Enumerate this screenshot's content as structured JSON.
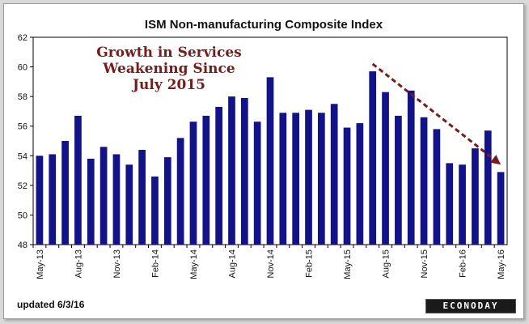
{
  "chart_data": {
    "type": "bar",
    "title": "ISM Non-manufacturing Composite Index",
    "annotation_lines": [
      "Growth in Services",
      "Weakening Since",
      "July 2015"
    ],
    "categories": [
      "May-13",
      "Jun-13",
      "Jul-13",
      "Aug-13",
      "Sep-13",
      "Oct-13",
      "Nov-13",
      "Dec-13",
      "Jan-14",
      "Feb-14",
      "Mar-14",
      "Apr-14",
      "May-14",
      "Jun-14",
      "Jul-14",
      "Aug-14",
      "Sep-14",
      "Oct-14",
      "Nov-14",
      "Dec-14",
      "Jan-15",
      "Feb-15",
      "Mar-15",
      "Apr-15",
      "May-15",
      "Jun-15",
      "Jul-15",
      "Aug-15",
      "Sep-15",
      "Oct-15",
      "Nov-15",
      "Dec-15",
      "Jan-16",
      "Feb-16",
      "Mar-16",
      "Apr-16",
      "May-16"
    ],
    "x_tick_labels": [
      "May-13",
      "Aug-13",
      "Nov-13",
      "Feb-14",
      "May-14",
      "Aug-14",
      "Nov-14",
      "Feb-15",
      "May-15",
      "Aug-15",
      "Nov-15",
      "Feb-16",
      "May-16"
    ],
    "values": [
      54.0,
      54.1,
      55.0,
      56.7,
      53.8,
      54.6,
      54.1,
      53.4,
      54.4,
      52.6,
      53.9,
      55.2,
      56.3,
      56.7,
      57.3,
      58.0,
      57.9,
      56.3,
      59.3,
      56.9,
      56.9,
      57.1,
      56.9,
      57.5,
      55.9,
      56.2,
      59.7,
      58.3,
      56.7,
      58.4,
      56.6,
      55.8,
      53.5,
      53.4,
      54.5,
      55.7,
      52.9
    ],
    "ylim": [
      48,
      62
    ],
    "y_ticks": [
      "48",
      "50",
      "52",
      "54",
      "56",
      "58",
      "60",
      "62"
    ],
    "trend_arrow": {
      "from_category": "Jul-15",
      "from_value": 60.2,
      "to_category": "May-16",
      "to_value": 53.4
    },
    "bar_color": "#12128c",
    "arrow_color": "#7a1a1a",
    "annotation_color": "#7a1a1a",
    "grid": false,
    "legend": "none"
  },
  "footer": {
    "updated": "updated 6/3/16",
    "brand": "ECONODAY"
  }
}
